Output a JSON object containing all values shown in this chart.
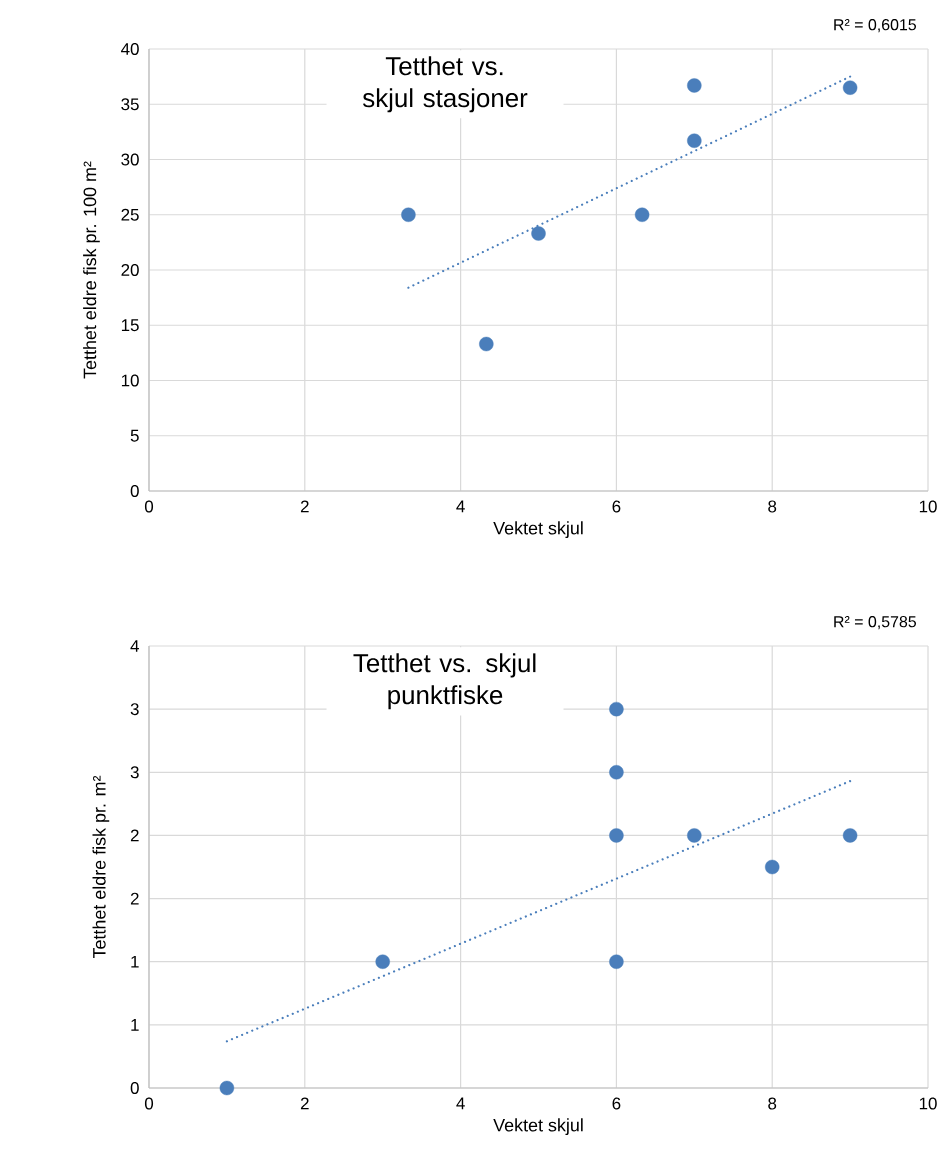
{
  "chart_data": [
    {
      "type": "scatter",
      "title": "Tetthet vs. skjul stasjoner",
      "xlabel": "Vektet skjul",
      "ylabel": "Tetthet eldre fisk pr. 100 m²",
      "annotations": [
        "R² = 0,6015"
      ],
      "xlim": [
        0,
        10
      ],
      "ylim": [
        0,
        40
      ],
      "xticks": [
        0,
        2,
        4,
        6,
        8,
        10
      ],
      "yticks": [
        0,
        5,
        10,
        15,
        20,
        25,
        30,
        35,
        40
      ],
      "grid": true,
      "series": [
        {
          "color": "#4a7ebb",
          "marker": "circle",
          "x": [
            3.33,
            4.33,
            5,
            6.33,
            7,
            7,
            9
          ],
          "values": [
            25,
            13.3,
            23.3,
            25,
            36.7,
            31.7,
            36.5
          ]
        },
        {
          "type": "line",
          "color": "#4a7ebb",
          "marker": "none",
          "line_style": "dotted",
          "x": [
            3.33,
            9
          ],
          "values": [
            18.4,
            37.5
          ]
        }
      ]
    },
    {
      "type": "scatter",
      "title": "Tetthet vs. skjul punktfiske",
      "xlabel": "Vektet skjul",
      "ylabel": "Tetthet eldre fisk pr. m²",
      "annotations": [
        "R² = 0,5785"
      ],
      "xlim": [
        0,
        10
      ],
      "ylim": [
        0,
        3.5
      ],
      "xticks": [
        0,
        2,
        4,
        6,
        8,
        10
      ],
      "yticks": [
        0,
        {
          "value": 0.5,
          "label": "1"
        },
        1,
        {
          "value": 1.5,
          "label": "2"
        },
        2,
        {
          "value": 2.5,
          "label": "3"
        },
        3,
        {
          "value": 3.5,
          "label": "4"
        }
      ],
      "grid": true,
      "series": [
        {
          "color": "#4a7ebb",
          "marker": "circle",
          "x": [
            1,
            3,
            6,
            6,
            6,
            6,
            7,
            8,
            9
          ],
          "values": [
            0,
            1,
            1,
            2,
            2.5,
            3,
            2,
            1.75,
            2
          ]
        },
        {
          "type": "line",
          "color": "#4a7ebb",
          "marker": "none",
          "line_style": "dotted",
          "x": [
            1,
            9
          ],
          "values": [
            0.37,
            2.43
          ]
        }
      ]
    }
  ]
}
